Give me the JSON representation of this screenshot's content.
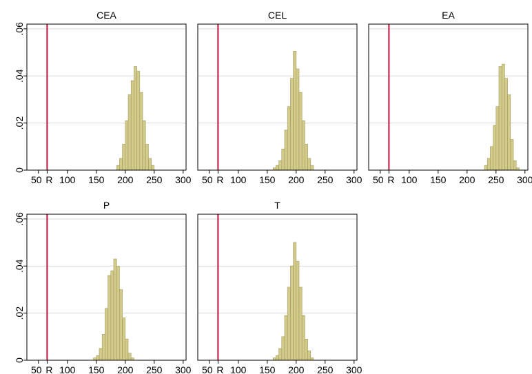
{
  "chart_data": {
    "type": "bar",
    "grid": true,
    "colors": {
      "bar_fill": "#d2cb8c",
      "bar_edge": "#a39b57",
      "reference_line": "#c0143c",
      "grid": "#d9d9d9",
      "frame": "#000000"
    },
    "xlim": [
      30,
      305
    ],
    "ylim": [
      0,
      0.062
    ],
    "xticks": [
      {
        "value": 50,
        "label": "50"
      },
      {
        "value": 65,
        "label": "R"
      },
      {
        "value": 100,
        "label": "100"
      },
      {
        "value": 150,
        "label": "150"
      },
      {
        "value": 200,
        "label": "200"
      },
      {
        "value": 250,
        "label": "250"
      },
      {
        "value": 300,
        "label": "300"
      }
    ],
    "yticks": [
      {
        "value": 0,
        "label": "0"
      },
      {
        "value": 0.02,
        "label": ".02"
      },
      {
        "value": 0.04,
        "label": ".04"
      },
      {
        "value": 0.06,
        "label": ".06"
      }
    ],
    "reference_line_x": 65,
    "bin_width": 5,
    "panels": [
      {
        "title": "CEA",
        "bins": [
          {
            "x": 185,
            "y": 0.002
          },
          {
            "x": 190,
            "y": 0.005
          },
          {
            "x": 195,
            "y": 0.011
          },
          {
            "x": 200,
            "y": 0.021
          },
          {
            "x": 205,
            "y": 0.032
          },
          {
            "x": 210,
            "y": 0.038
          },
          {
            "x": 215,
            "y": 0.044
          },
          {
            "x": 220,
            "y": 0.042
          },
          {
            "x": 225,
            "y": 0.033
          },
          {
            "x": 230,
            "y": 0.021
          },
          {
            "x": 235,
            "y": 0.011
          },
          {
            "x": 240,
            "y": 0.005
          },
          {
            "x": 245,
            "y": 0.002
          }
        ]
      },
      {
        "title": "CEL",
        "bins": [
          {
            "x": 160,
            "y": 0.001
          },
          {
            "x": 165,
            "y": 0.002
          },
          {
            "x": 170,
            "y": 0.004
          },
          {
            "x": 175,
            "y": 0.009
          },
          {
            "x": 180,
            "y": 0.017
          },
          {
            "x": 185,
            "y": 0.027
          },
          {
            "x": 190,
            "y": 0.039
          },
          {
            "x": 195,
            "y": 0.0505
          },
          {
            "x": 200,
            "y": 0.043
          },
          {
            "x": 205,
            "y": 0.033
          },
          {
            "x": 210,
            "y": 0.021
          },
          {
            "x": 215,
            "y": 0.011
          },
          {
            "x": 220,
            "y": 0.005
          },
          {
            "x": 225,
            "y": 0.002
          }
        ]
      },
      {
        "title": "EA",
        "bins": [
          {
            "x": 230,
            "y": 0.002
          },
          {
            "x": 235,
            "y": 0.005
          },
          {
            "x": 240,
            "y": 0.01
          },
          {
            "x": 245,
            "y": 0.019
          },
          {
            "x": 250,
            "y": 0.027
          },
          {
            "x": 255,
            "y": 0.044
          },
          {
            "x": 260,
            "y": 0.045
          },
          {
            "x": 265,
            "y": 0.039
          },
          {
            "x": 270,
            "y": 0.032
          },
          {
            "x": 275,
            "y": 0.013
          },
          {
            "x": 280,
            "y": 0.004
          },
          {
            "x": 285,
            "y": 0.001
          }
        ]
      },
      {
        "title": "P",
        "bins": [
          {
            "x": 145,
            "y": 0.001
          },
          {
            "x": 150,
            "y": 0.002
          },
          {
            "x": 155,
            "y": 0.005
          },
          {
            "x": 160,
            "y": 0.011
          },
          {
            "x": 165,
            "y": 0.022
          },
          {
            "x": 170,
            "y": 0.036
          },
          {
            "x": 175,
            "y": 0.038
          },
          {
            "x": 180,
            "y": 0.043
          },
          {
            "x": 185,
            "y": 0.04
          },
          {
            "x": 190,
            "y": 0.03
          },
          {
            "x": 195,
            "y": 0.018
          },
          {
            "x": 200,
            "y": 0.009
          },
          {
            "x": 205,
            "y": 0.003
          },
          {
            "x": 210,
            "y": 0.001
          }
        ]
      },
      {
        "title": "T",
        "bins": [
          {
            "x": 160,
            "y": 0.001
          },
          {
            "x": 165,
            "y": 0.002
          },
          {
            "x": 170,
            "y": 0.005
          },
          {
            "x": 175,
            "y": 0.01
          },
          {
            "x": 180,
            "y": 0.019
          },
          {
            "x": 185,
            "y": 0.031
          },
          {
            "x": 190,
            "y": 0.04
          },
          {
            "x": 195,
            "y": 0.05
          },
          {
            "x": 200,
            "y": 0.042
          },
          {
            "x": 205,
            "y": 0.031
          },
          {
            "x": 210,
            "y": 0.019
          },
          {
            "x": 215,
            "y": 0.009
          },
          {
            "x": 220,
            "y": 0.004
          },
          {
            "x": 225,
            "y": 0.001
          }
        ]
      }
    ]
  }
}
